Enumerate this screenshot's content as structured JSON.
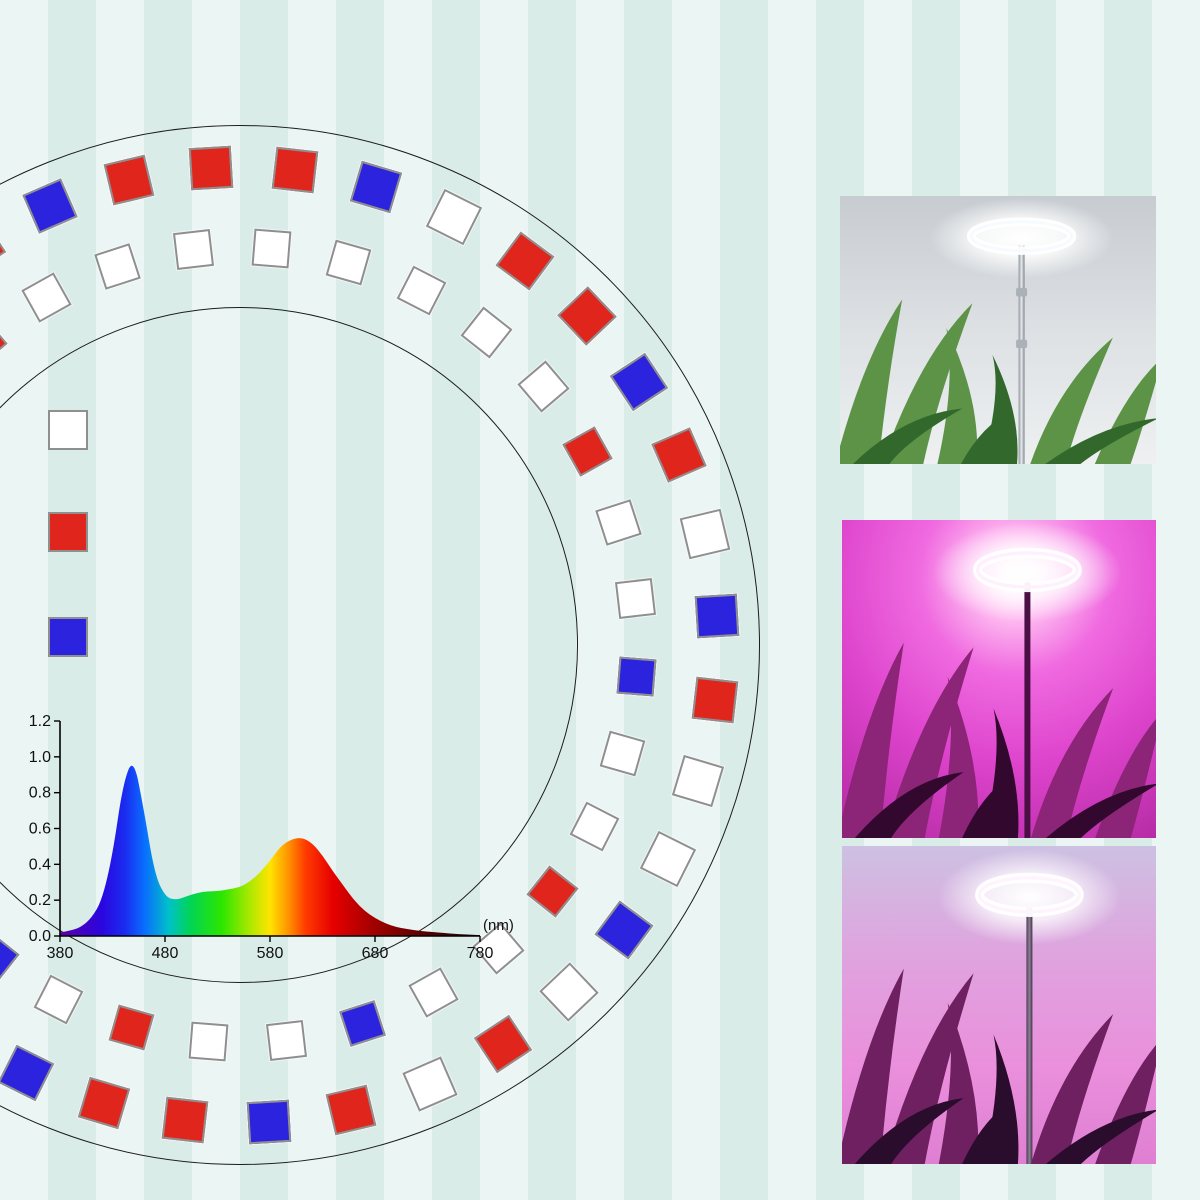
{
  "diagram": {
    "description_colors": {
      "background": "#e2f1ee",
      "circle_outline": "#1c1c1c"
    }
  },
  "led_colors": {
    "white": "#ffffff",
    "red": "#e0261c",
    "blue": "#2b23dd",
    "border": "#8f8f8f"
  },
  "legend": {
    "items": [
      {
        "name": "white-led",
        "color": "white"
      },
      {
        "name": "red-led",
        "color": "red"
      },
      {
        "name": "blue-led",
        "color": "blue"
      }
    ]
  },
  "led_rings": {
    "outer": {
      "colors": [
        "red",
        "red",
        "blue",
        "white",
        "red",
        "red",
        "blue",
        "red",
        "white",
        "blue",
        "red",
        "white",
        "white",
        "blue",
        "white",
        "red",
        "white",
        "red",
        "blue",
        "red",
        "red",
        "blue",
        "white",
        "red",
        "white",
        "white",
        "blue",
        "white",
        "red",
        "white",
        "red",
        "blue",
        "white",
        "red",
        "blue",
        "red"
      ]
    },
    "inner": {
      "colors": [
        "white",
        "white",
        "white",
        "white",
        "white",
        "red",
        "white",
        "white",
        "blue",
        "white",
        "white",
        "red",
        "white",
        "white",
        "blue",
        "white",
        "white",
        "red",
        "white",
        "blue",
        "white",
        "white",
        "red",
        "white",
        "white",
        "blue",
        "white",
        "white",
        "red",
        "white",
        "white",
        "white"
      ]
    }
  },
  "chart_data": {
    "type": "area",
    "title": "",
    "xlabel": "(nm)",
    "ylabel": "",
    "xlim": [
      380,
      780
    ],
    "ylim": [
      0,
      1.2
    ],
    "xticks": [
      "380",
      "480",
      "580",
      "680",
      "780"
    ],
    "yticks": [
      "0.0",
      "0.2",
      "0.4",
      "0.6",
      "0.8",
      "1.0",
      "1.2"
    ],
    "x": [
      380,
      390,
      400,
      410,
      420,
      430,
      440,
      450,
      460,
      470,
      480,
      490,
      500,
      510,
      520,
      530,
      540,
      550,
      560,
      570,
      580,
      590,
      600,
      610,
      620,
      630,
      640,
      650,
      660,
      670,
      680,
      690,
      700,
      710,
      720,
      730,
      740,
      750,
      760,
      770,
      780
    ],
    "y": [
      0.02,
      0.03,
      0.05,
      0.1,
      0.2,
      0.45,
      0.85,
      1.0,
      0.7,
      0.35,
      0.22,
      0.2,
      0.22,
      0.24,
      0.25,
      0.25,
      0.26,
      0.27,
      0.3,
      0.35,
      0.42,
      0.5,
      0.54,
      0.55,
      0.52,
      0.45,
      0.36,
      0.28,
      0.2,
      0.14,
      0.1,
      0.07,
      0.05,
      0.04,
      0.03,
      0.025,
      0.02,
      0.015,
      0.01,
      0.008,
      0.005
    ],
    "grid": false,
    "legend_position": "none",
    "spectrum_gradient": [
      {
        "offset": 0.0,
        "color": "#5b00a5"
      },
      {
        "offset": 0.1,
        "color": "#2a06e0"
      },
      {
        "offset": 0.155,
        "color": "#1b2cf0"
      },
      {
        "offset": 0.2,
        "color": "#0a6cff"
      },
      {
        "offset": 0.26,
        "color": "#00c2c8"
      },
      {
        "offset": 0.31,
        "color": "#00d455"
      },
      {
        "offset": 0.385,
        "color": "#2ce600"
      },
      {
        "offset": 0.45,
        "color": "#a8e800"
      },
      {
        "offset": 0.5,
        "color": "#ffe400"
      },
      {
        "offset": 0.545,
        "color": "#ff9000"
      },
      {
        "offset": 0.585,
        "color": "#ff3a00"
      },
      {
        "offset": 0.65,
        "color": "#e60000"
      },
      {
        "offset": 0.75,
        "color": "#a00000"
      },
      {
        "offset": 0.87,
        "color": "#560000"
      },
      {
        "offset": 1.0,
        "color": "#1e0000"
      }
    ]
  },
  "photos": {
    "modes": [
      {
        "name": "white-light-mode",
        "glow": "#ffffff",
        "dominant": "#dde1e4"
      },
      {
        "name": "pink-light-mode",
        "glow": "#ffffff",
        "dominant": "#dd44cc"
      },
      {
        "name": "pink-light-mode-2",
        "glow": "#ffffff",
        "dominant": "#ea8fdc"
      }
    ]
  }
}
